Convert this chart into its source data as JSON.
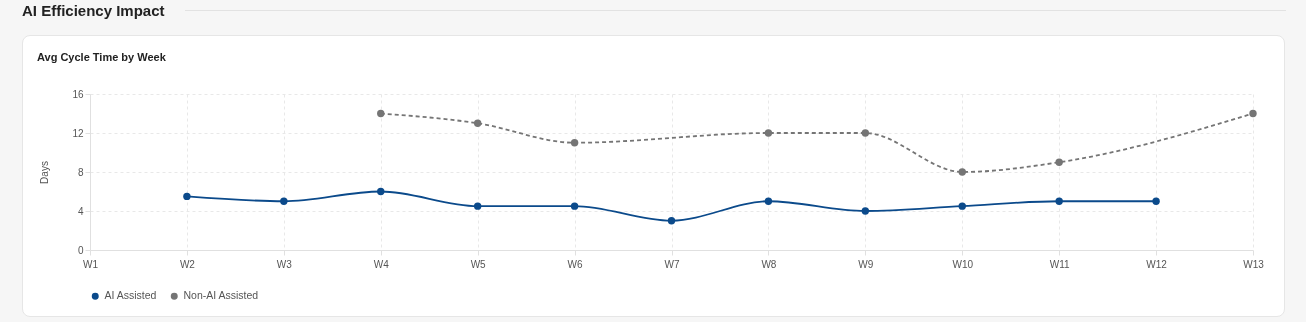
{
  "chart_data": {
    "type": "line",
    "title": "AI Efficiency Impact",
    "subtitle": "Avg Cycle Time by Week",
    "ylabel": "Days",
    "categories": [
      "W1",
      "W2",
      "W3",
      "W4",
      "W5",
      "W6",
      "W7",
      "W8",
      "W9",
      "W10",
      "W11",
      "W12",
      "W13"
    ],
    "series": [
      {
        "name": "AI Assisted",
        "color": "#0b4a8b",
        "line_style": "solid",
        "values": [
          null,
          5.5,
          5,
          6,
          4.5,
          4.5,
          3,
          5,
          4,
          4.5,
          5,
          5,
          null
        ]
      },
      {
        "name": "Non-AI Assisted",
        "color": "#757575",
        "line_style": "dashed",
        "values": [
          null,
          null,
          null,
          14,
          13,
          11,
          null,
          12,
          12,
          8,
          9,
          null,
          14
        ]
      }
    ],
    "ylim": [
      0,
      16
    ],
    "yticks": [
      0,
      4,
      8,
      12,
      16
    ],
    "grid": true,
    "legend": "bottom",
    "marker": "circle"
  }
}
